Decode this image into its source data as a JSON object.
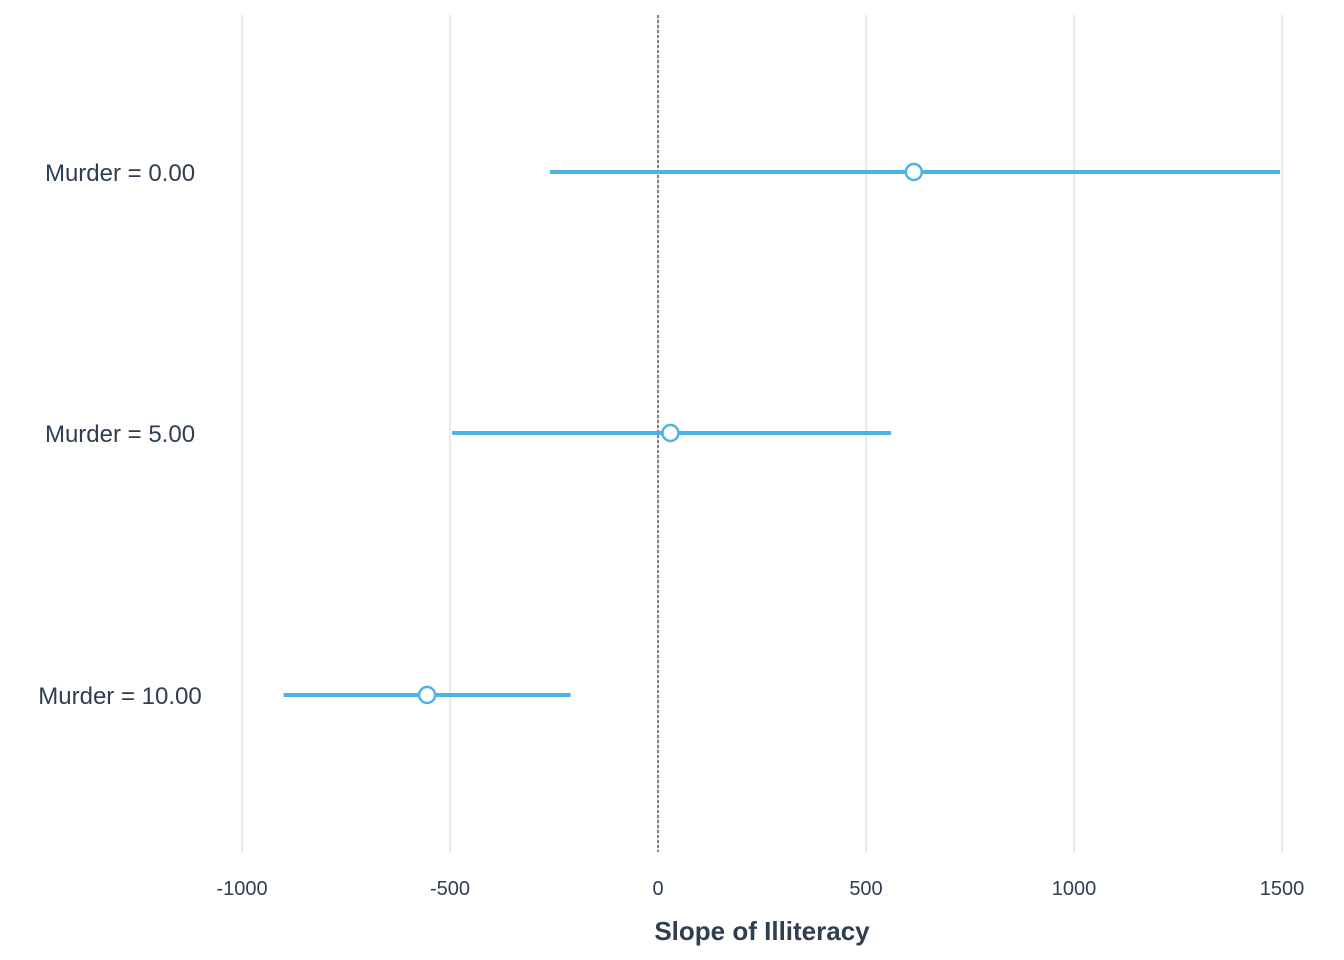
{
  "chart_data": {
    "type": "scatter",
    "subtype": "dot-whisker",
    "title": "",
    "xlabel": "Slope of Illiteracy",
    "ylabel": "",
    "xlim": [
      -1000,
      1500
    ],
    "xticks": [
      -1000,
      -500,
      0,
      500,
      1000,
      1500
    ],
    "xtick_labels": [
      "-1000",
      "-500",
      "0",
      "500",
      "1000",
      "1500"
    ],
    "reference_line": {
      "x": 0,
      "style": "dashed"
    },
    "grid": {
      "vertical": true,
      "horizontal": false
    },
    "legend": "none",
    "color": "#4db3e6",
    "categories": [
      "Murder = 0.00",
      "Murder = 5.00",
      "Murder = 10.00"
    ],
    "estimates": [
      615,
      30,
      -555
    ],
    "conf_low": [
      -260,
      -495,
      -900
    ],
    "conf_high": [
      1495,
      560,
      -210
    ]
  }
}
